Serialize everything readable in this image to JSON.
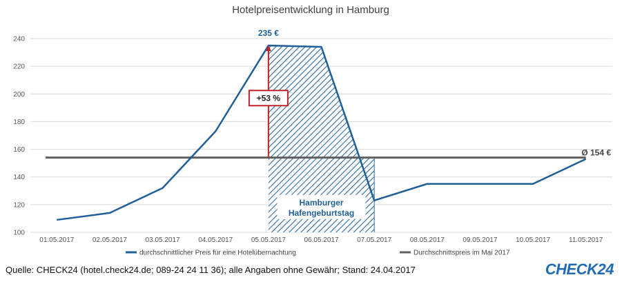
{
  "chart_data": {
    "type": "line",
    "title": "Hotelpreisentwicklung in Hamburg",
    "categories": [
      "01.05.2017",
      "02.05.2017",
      "03.05.2017",
      "04.05.2017",
      "05.05.2017",
      "06.05.2017",
      "07.05.2017",
      "08.05.2017",
      "09.05.2017",
      "10.05.2017",
      "11.05.2017"
    ],
    "ylim": [
      100,
      240
    ],
    "yticks": [
      100,
      120,
      140,
      160,
      180,
      200,
      220,
      240
    ],
    "grid": true,
    "legend_position": "bottom",
    "series": [
      {
        "name": "durchschnittlicher Preis für eine Hotelübernachtung",
        "color": "#1f5f9a",
        "values": [
          109,
          114,
          132,
          173,
          235,
          234,
          123,
          135,
          135,
          135,
          153
        ]
      },
      {
        "name": "Durchschnittspreis im Mai 2017",
        "color": "#606060",
        "values": [
          154,
          154,
          154,
          154,
          154,
          154,
          154,
          154,
          154,
          154,
          154
        ]
      }
    ],
    "annotations": {
      "peak_label": "235 €",
      "increase_label": "+53 %",
      "average_label": "Ø 154 €",
      "event_label_line1": "Hamburger",
      "event_label_line2": "Hafengeburtstag"
    }
  },
  "footer": {
    "source": "Quelle: CHECK24 (hotel.check24.de; 089-24 24 11 36); alle Angaben ohne Gewähr; Stand: 24.04.2017",
    "logo_text": "CHECK",
    "logo_num": "24"
  },
  "colors": {
    "line": "#1f5f9a",
    "average": "#606060",
    "increase_arrow": "#c0202a",
    "hatch": "#2a6aa3",
    "grid": "#d9d9d9"
  }
}
